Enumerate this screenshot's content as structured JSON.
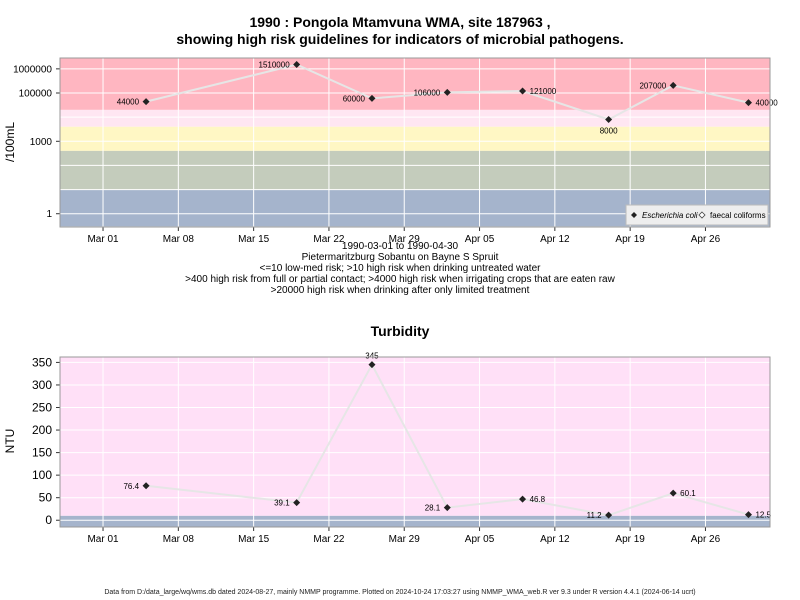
{
  "chart_data": [
    {
      "type": "line",
      "title": "1990 : Pongola Mtamvuna WMA, site 187963 ,",
      "subtitle": "showing high risk guidelines for indicators of microbial pathogens.",
      "ylabel": "/100mL",
      "xlabel_lines": [
        "1990-03-01 to 1990-04-30",
        "Pietermaritzburg Sobantu on Bayne S Spruit",
        "<=10 low-med risk; >10 high risk when drinking untreated water",
        ">400 high risk from full or partial contact; >4000 high risk when irrigating crops that are eaten raw",
        ">20000 high risk when drinking after only limited treatment"
      ],
      "y_scale": "log",
      "x_tick_labels": [
        "Mar 01",
        "Mar 08",
        "Mar 15",
        "Mar 22",
        "Mar 29",
        "Apr 05",
        "Apr 12",
        "Apr 19",
        "Apr 26"
      ],
      "y_tick_labels": [
        "1",
        "1000",
        "100000",
        "1000000"
      ],
      "legend": {
        "position": "bottom-right",
        "entries": [
          "Escherichia coli",
          "faecal coliforms"
        ]
      },
      "risk_bands": [
        {
          "from": 20000,
          "to": 3000000,
          "color": "#ffb6c1"
        },
        {
          "from": 4000,
          "to": 20000,
          "color": "#ffe6f2"
        },
        {
          "from": 400,
          "to": 4000,
          "color": "#fff7c4"
        },
        {
          "from": 10,
          "to": 400,
          "color": "#c4ccbc"
        },
        {
          "from": 0.3,
          "to": 10,
          "color": "#a5b4cc"
        }
      ],
      "series": [
        {
          "name": "Escherichia coli",
          "x": [
            "1990-03-05",
            "1990-03-19",
            "1990-03-26",
            "1990-04-02",
            "1990-04-09",
            "1990-04-17",
            "1990-04-23",
            "1990-04-30"
          ],
          "values": [
            44000,
            1510000,
            60000,
            106000,
            121000,
            8000,
            207000,
            40000
          ],
          "labels": [
            "44000",
            "1510000",
            "60000",
            "106000",
            "121000",
            "8000",
            "207000",
            "40000"
          ]
        }
      ]
    },
    {
      "type": "line",
      "title": "Turbidity",
      "ylabel": "NTU",
      "x_tick_labels": [
        "Mar 01",
        "Mar 08",
        "Mar 15",
        "Mar 22",
        "Mar 29",
        "Apr 05",
        "Apr 12",
        "Apr 19",
        "Apr 26"
      ],
      "y_tick_labels": [
        "0",
        "50",
        "100",
        "150",
        "200",
        "250",
        "300",
        "350"
      ],
      "ylim": [
        -15,
        362
      ],
      "risk_bands": [
        {
          "from": -15,
          "to": 10,
          "color": "#a5b4cc"
        },
        {
          "from": 10,
          "to": 362,
          "color": "#ffe0f7"
        }
      ],
      "series": [
        {
          "x": [
            "1990-03-05",
            "1990-03-19",
            "1990-03-26",
            "1990-04-02",
            "1990-04-09",
            "1990-04-17",
            "1990-04-23",
            "1990-04-30"
          ],
          "values": [
            76.4,
            39.1,
            345,
            28.1,
            46.8,
            11.2,
            60.1,
            12.5
          ],
          "labels": [
            "76.4",
            "39.1",
            "345",
            "28.1",
            "46.8",
            "11.2",
            "60.1",
            "12.5"
          ]
        }
      ]
    }
  ],
  "footer": "Data from D:/data_large/wq/wms.db dated 2024-08-27, mainly NMMP programme. Plotted on 2024-10-24 17:03:27 using NMMP_WMA_web.R ver 9.3 under R version 4.4.1 (2024-06-14 ucrt)"
}
